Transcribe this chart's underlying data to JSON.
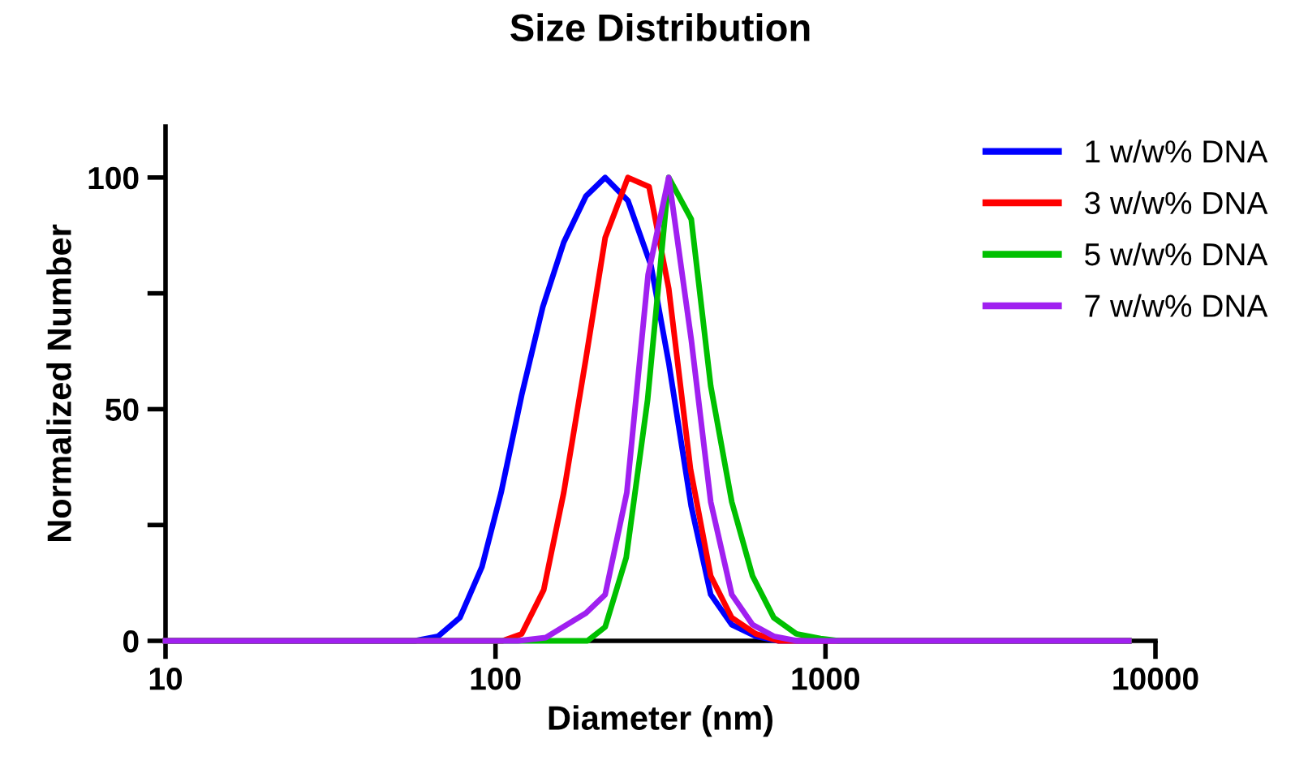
{
  "chart_data": {
    "type": "line",
    "title": "Size Distribution",
    "xlabel": "Diameter (nm)",
    "ylabel": "Normalized Number",
    "log": "x",
    "xlim": [
      10,
      10000
    ],
    "xticks": [
      10,
      100,
      1000,
      10000
    ],
    "ylim": [
      0,
      111
    ],
    "yticks": [
      0,
      {
        "value": 25,
        "label": null
      },
      50,
      {
        "value": 75,
        "label": null
      },
      100
    ],
    "grid": false,
    "legend": "top right",
    "marker": "none",
    "line_style": "solid",
    "series": [
      {
        "name": "1 w/w% DNA",
        "color": "#0000ff",
        "x": [
          10,
          57,
          67,
          78,
          91,
          104,
          120,
          139,
          161,
          188,
          215,
          252,
          296,
          335,
          392,
          449,
          520,
          615,
          720,
          8300
        ],
        "values": [
          0,
          0,
          1,
          5,
          16,
          32,
          53,
          72,
          86,
          96,
          100,
          95,
          81,
          60,
          29,
          10,
          3.5,
          1,
          0,
          0
        ]
      },
      {
        "name": "3 w/w% DNA",
        "color": "#ff0000",
        "x": [
          10,
          105,
          120,
          140,
          161,
          188,
          215,
          252,
          292,
          335,
          390,
          449,
          520,
          615,
          720,
          8300
        ],
        "values": [
          0,
          0,
          1.5,
          11,
          32,
          61,
          87,
          100,
          98,
          76,
          37,
          14,
          5,
          1.5,
          0,
          0
        ]
      },
      {
        "name": "5 w/w% DNA",
        "color": "#00c000",
        "x": [
          10,
          190,
          215,
          249,
          289,
          335,
          392,
          449,
          520,
          601,
          697,
          816,
          966,
          1100,
          8300
        ],
        "values": [
          0,
          0,
          3,
          18,
          52,
          100,
          91,
          55,
          30,
          14,
          5,
          1.5,
          0.5,
          0,
          0
        ]
      },
      {
        "name": "7 w/w% DNA",
        "color": "#a020f0",
        "x": [
          10,
          117,
          142,
          188,
          215,
          250,
          290,
          335,
          392,
          449,
          520,
          601,
          697,
          820,
          8300
        ],
        "values": [
          0,
          0,
          0.7,
          6,
          10,
          32,
          79,
          100,
          65,
          30,
          10,
          3.5,
          1,
          0,
          0
        ]
      }
    ]
  }
}
